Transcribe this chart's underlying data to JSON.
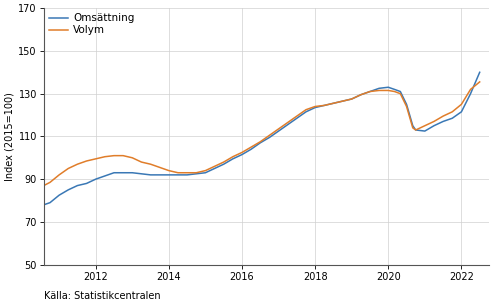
{
  "ylabel": "Index (2015=100)",
  "source": "Källa: Statistikcentralen",
  "legend_labels": [
    "Omsättning",
    "Volym"
  ],
  "colors": [
    "#3a78b5",
    "#e07d2a"
  ],
  "ylim": [
    50,
    170
  ],
  "yticks": [
    50,
    70,
    90,
    110,
    130,
    150,
    170
  ],
  "xlim_start": 2010.58,
  "xlim_end": 2022.75,
  "xticks_show": [
    2012,
    2014,
    2016,
    2018,
    2020,
    2022
  ],
  "omsa_x": [
    2010.58,
    2010.75,
    2011.0,
    2011.25,
    2011.5,
    2011.75,
    2012.0,
    2012.25,
    2012.5,
    2012.75,
    2013.0,
    2013.25,
    2013.5,
    2013.75,
    2014.0,
    2014.25,
    2014.5,
    2014.75,
    2015.0,
    2015.25,
    2015.5,
    2015.75,
    2016.0,
    2016.25,
    2016.5,
    2016.75,
    2017.0,
    2017.25,
    2017.5,
    2017.75,
    2018.0,
    2018.25,
    2018.5,
    2018.75,
    2019.0,
    2019.25,
    2019.5,
    2019.75,
    2020.0,
    2020.17,
    2020.33,
    2020.5,
    2020.67,
    2020.75,
    2021.0,
    2021.25,
    2021.5,
    2021.75,
    2022.0,
    2022.25,
    2022.5
  ],
  "omsa_y": [
    78.0,
    79.0,
    82.5,
    85.0,
    87.0,
    88.0,
    90.0,
    91.5,
    93.0,
    93.0,
    93.0,
    92.5,
    92.0,
    92.0,
    92.0,
    92.0,
    92.0,
    92.5,
    93.0,
    95.0,
    97.0,
    99.5,
    101.5,
    104.0,
    107.0,
    109.5,
    112.5,
    115.5,
    118.5,
    121.5,
    123.5,
    124.5,
    125.5,
    126.5,
    127.5,
    129.5,
    131.0,
    132.5,
    133.0,
    132.0,
    131.0,
    125.0,
    115.0,
    113.0,
    112.5,
    115.0,
    117.0,
    118.5,
    121.5,
    130.0,
    140.0
  ],
  "volym_x": [
    2010.58,
    2010.75,
    2011.0,
    2011.25,
    2011.5,
    2011.75,
    2012.0,
    2012.25,
    2012.5,
    2012.75,
    2013.0,
    2013.25,
    2013.5,
    2013.75,
    2014.0,
    2014.25,
    2014.5,
    2014.75,
    2015.0,
    2015.25,
    2015.5,
    2015.75,
    2016.0,
    2016.25,
    2016.5,
    2016.75,
    2017.0,
    2017.25,
    2017.5,
    2017.75,
    2018.0,
    2018.25,
    2018.5,
    2018.75,
    2019.0,
    2019.25,
    2019.5,
    2019.75,
    2020.0,
    2020.17,
    2020.33,
    2020.5,
    2020.67,
    2020.75,
    2021.0,
    2021.25,
    2021.5,
    2021.75,
    2022.0,
    2022.25,
    2022.5
  ],
  "volym_y": [
    87.0,
    88.5,
    92.0,
    95.0,
    97.0,
    98.5,
    99.5,
    100.5,
    101.0,
    101.0,
    100.0,
    98.0,
    97.0,
    95.5,
    94.0,
    93.0,
    93.0,
    93.0,
    94.0,
    96.0,
    98.0,
    100.5,
    102.5,
    105.0,
    107.5,
    110.5,
    113.5,
    116.5,
    119.5,
    122.5,
    124.0,
    124.5,
    125.5,
    126.5,
    127.5,
    129.5,
    131.0,
    131.5,
    131.5,
    131.0,
    130.0,
    124.0,
    114.0,
    113.0,
    115.0,
    117.0,
    119.5,
    121.5,
    125.0,
    132.0,
    135.5
  ]
}
